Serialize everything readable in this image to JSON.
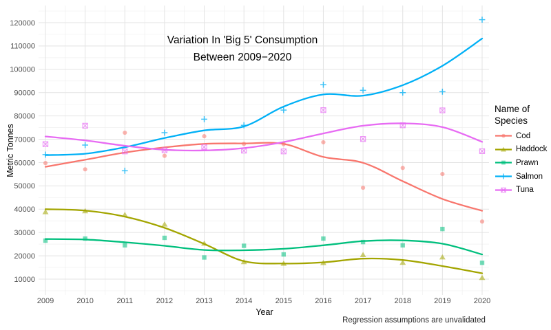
{
  "colors": {
    "background": "#ffffff",
    "grid_major": "#e3e3e3",
    "grid_minor": "#f0f0f0",
    "tick_label": "#4d4d4d",
    "text": "#000000"
  },
  "chart_data": {
    "type": "scatter",
    "smoother": "loess trend lines (geom_smooth), regression unvalidated",
    "title": "Variation In 'Big 5' Consumption Between 2009−2020",
    "title_lines": [
      "Variation In 'Big 5' Consumption",
      "Between 2009−2020"
    ],
    "xlabel": "Year",
    "ylabel": "Metric Tonnes",
    "caption": "Regression assumptions are unvalidated",
    "legend_title_lines": [
      "Name of",
      "Species"
    ],
    "legend_position": "right",
    "grid": true,
    "x": [
      2009,
      2010,
      2011,
      2012,
      2013,
      2014,
      2015,
      2016,
      2017,
      2018,
      2019,
      2020
    ],
    "x_ticks": [
      2009,
      2010,
      2011,
      2012,
      2013,
      2014,
      2015,
      2016,
      2017,
      2018,
      2019,
      2020
    ],
    "y_ticks": [
      10000,
      20000,
      30000,
      40000,
      50000,
      60000,
      70000,
      80000,
      90000,
      100000,
      110000,
      120000
    ],
    "ylim": [
      5000,
      125000
    ],
    "series": [
      {
        "name": "Cod",
        "color": "#F8766D",
        "marker": "circle",
        "points": [
          59800,
          57100,
          72800,
          62900,
          71300,
          68000,
          67900,
          68700,
          49200,
          57700,
          55100,
          34700
        ],
        "trend": [
          58200,
          61200,
          64300,
          66500,
          68000,
          68200,
          68000,
          62400,
          59900,
          52000,
          44400,
          39300
        ]
      },
      {
        "name": "Haddock",
        "color": "#A3A500",
        "marker": "triangle",
        "points": [
          38800,
          39200,
          37600,
          33500,
          25300,
          17400,
          16700,
          17000,
          20400,
          17100,
          19400,
          10600
        ],
        "trend": [
          40000,
          39400,
          36800,
          32000,
          25100,
          17700,
          16700,
          17200,
          18800,
          18200,
          15600,
          12500
        ]
      },
      {
        "name": "Prawn",
        "color": "#00BF7D",
        "marker": "square",
        "points": [
          26500,
          27400,
          24500,
          27700,
          19300,
          24300,
          20600,
          27400,
          25900,
          24500,
          31500,
          17000
        ],
        "trend": [
          27200,
          27000,
          25800,
          24300,
          22500,
          22400,
          23000,
          24500,
          26300,
          26600,
          25200,
          20600
        ]
      },
      {
        "name": "Salmon",
        "color": "#00B0F6",
        "marker": "plus",
        "points": [
          63400,
          67500,
          56500,
          72800,
          78600,
          76000,
          82500,
          93400,
          91000,
          90000,
          90400,
          121300
        ],
        "trend": [
          63200,
          63800,
          66600,
          70500,
          73800,
          75500,
          84000,
          89200,
          88700,
          93200,
          101500,
          113200
        ]
      },
      {
        "name": "Tuna",
        "color": "#E76BF3",
        "marker": "square-x",
        "points": [
          67900,
          75800,
          64800,
          65300,
          66700,
          65100,
          64800,
          82500,
          70100,
          76000,
          82400,
          64900
        ],
        "trend": [
          71200,
          69500,
          67200,
          65500,
          65200,
          66200,
          68800,
          72500,
          75800,
          76800,
          75200,
          68900
        ]
      }
    ]
  }
}
